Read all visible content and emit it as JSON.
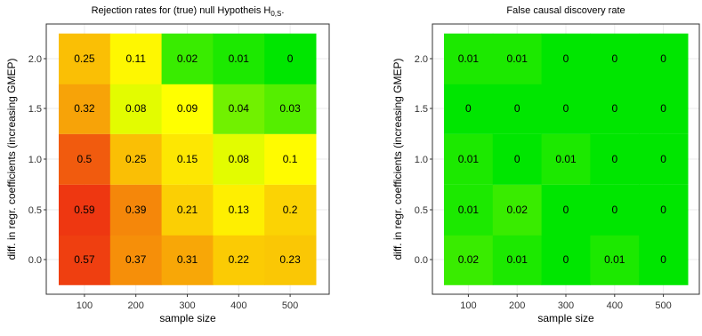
{
  "chart_data": [
    {
      "type": "heatmap",
      "title": "Rejection rates for (true) null Hypotheis H",
      "title_subscript": "0,S",
      "title_suffix": ".",
      "xlabel": "sample size",
      "ylabel": "diff. in regr. coefficients (increasing GMEP)",
      "x_categories": [
        "100",
        "200",
        "300",
        "400",
        "500"
      ],
      "y_categories": [
        "0.0",
        "0.5",
        "1.0",
        "1.5",
        "2.0"
      ],
      "values": [
        [
          0.57,
          0.37,
          0.31,
          0.22,
          0.23
        ],
        [
          0.59,
          0.39,
          0.21,
          0.13,
          0.2
        ],
        [
          0.5,
          0.25,
          0.15,
          0.08,
          0.1
        ],
        [
          0.32,
          0.08,
          0.09,
          0.04,
          0.03
        ],
        [
          0.25,
          0.11,
          0.02,
          0.01,
          0
        ]
      ],
      "labels": [
        [
          "0.57",
          "0.37",
          "0.31",
          "0.22",
          "0.23"
        ],
        [
          "0.59",
          "0.39",
          "0.21",
          "0.13",
          "0.2"
        ],
        [
          "0.5",
          "0.25",
          "0.15",
          "0.08",
          "0.1"
        ],
        [
          "0.32",
          "0.08",
          "0.09",
          "0.04",
          "0.03"
        ],
        [
          "0.25",
          "0.11",
          "0.02",
          "0.01",
          "0"
        ]
      ],
      "color_scale": "green-yellow-red",
      "grid": true
    },
    {
      "type": "heatmap",
      "title": "False causal discovery rate",
      "title_subscript": "",
      "title_suffix": "",
      "xlabel": "sample size",
      "ylabel": "diff. in regr. coefficients (increasing GMEP)",
      "x_categories": [
        "100",
        "200",
        "300",
        "400",
        "500"
      ],
      "y_categories": [
        "0.0",
        "0.5",
        "1.0",
        "1.5",
        "2.0"
      ],
      "values": [
        [
          0.02,
          0.01,
          0,
          0.01,
          0
        ],
        [
          0.01,
          0.02,
          0,
          0,
          0
        ],
        [
          0.01,
          0,
          0.01,
          0,
          0
        ],
        [
          0,
          0,
          0,
          0,
          0
        ],
        [
          0.01,
          0.01,
          0,
          0,
          0
        ]
      ],
      "labels": [
        [
          "0.02",
          "0.01",
          "0",
          "0.01",
          "0"
        ],
        [
          "0.01",
          "0.02",
          "0",
          "0",
          "0"
        ],
        [
          "0.01",
          "0",
          "0.01",
          "0",
          "0"
        ],
        [
          "0",
          "0",
          "0",
          "0",
          "0"
        ],
        [
          "0.01",
          "0.01",
          "0",
          "0",
          "0"
        ]
      ],
      "color_scale": "green-yellow-red",
      "grid": true
    }
  ],
  "colors": {
    "low": "#00e600",
    "mid": "#ffff00",
    "high": "#ee3311",
    "panel_border": "#333333",
    "gridline": "#ebebeb"
  }
}
